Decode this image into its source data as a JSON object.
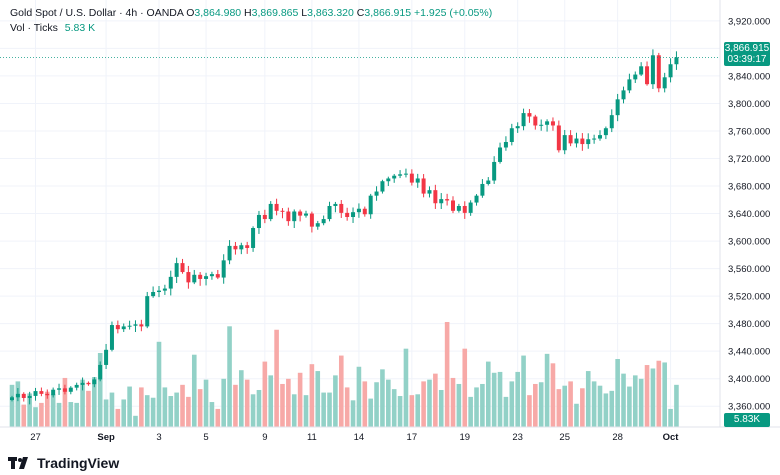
{
  "header": {
    "symbol": "Gold Spot / U.S. Dollar · 4h · OANDA",
    "open_label": "O",
    "open": "3,864.980",
    "high_label": "H",
    "high": "3,869.865",
    "low_label": "L",
    "low": "3,863.320",
    "close_label": "C",
    "close": "3,866.915",
    "change": "+1.925 (+0.05%)",
    "vol_label": "Vol · Ticks",
    "vol_value": "5.83 K"
  },
  "last_price": {
    "price": "3,866.915",
    "countdown": "03:39:17"
  },
  "volume_tag": "5.83K",
  "branding": {
    "name": "TradingView"
  },
  "colors": {
    "up": "#089981",
    "down": "#f23645",
    "vol_up": "#92d1c7",
    "vol_down": "#f7a9a7",
    "grid": "#f0f3fa"
  },
  "chart_data": {
    "type": "candlestick",
    "ylim": [
      3340,
      3930
    ],
    "y_ticks": [
      3360,
      3400,
      3440,
      3480,
      3520,
      3560,
      3600,
      3640,
      3680,
      3720,
      3760,
      3800,
      3840,
      3880,
      3920
    ],
    "y_tick_labels": [
      "3,360.000",
      "3,400.000",
      "3,440.000",
      "3,480.000",
      "3,520.000",
      "3,560.000",
      "3,600.000",
      "3,640.000",
      "3,680.000",
      "3,720.000",
      "3,760.000",
      "3,800.000",
      "3,840.000",
      "3,880.000",
      "3,920.000"
    ],
    "x_tick_labels": [
      {
        "label": "27",
        "index": 4
      },
      {
        "label": "Sep",
        "index": 16
      },
      {
        "label": "3",
        "index": 25
      },
      {
        "label": "5",
        "index": 33
      },
      {
        "label": "9",
        "index": 43
      },
      {
        "label": "11",
        "index": 51
      },
      {
        "label": "14",
        "index": 59
      },
      {
        "label": "17",
        "index": 68
      },
      {
        "label": "19",
        "index": 77
      },
      {
        "label": "23",
        "index": 86
      },
      {
        "label": "25",
        "index": 94
      },
      {
        "label": "28",
        "index": 103
      },
      {
        "label": "Oct",
        "index": 112
      }
    ],
    "closes": [
      3373,
      3378,
      3372,
      3375,
      3382,
      3378,
      3376,
      3384,
      3386,
      3381,
      3387,
      3391,
      3394,
      3392,
      3399,
      3420,
      3442,
      3478,
      3472,
      3476,
      3477,
      3479,
      3476,
      3520,
      3526,
      3528,
      3531,
      3548,
      3568,
      3555,
      3540,
      3551,
      3545,
      3549,
      3552,
      3547,
      3572,
      3593,
      3588,
      3594,
      3590,
      3619,
      3638,
      3632,
      3654,
      3644,
      3643,
      3629,
      3643,
      3637,
      3640,
      3621,
      3626,
      3632,
      3651,
      3654,
      3641,
      3635,
      3642,
      3647,
      3639,
      3666,
      3672,
      3687,
      3691,
      3695,
      3697,
      3698,
      3685,
      3691,
      3669,
      3674,
      3655,
      3661,
      3659,
      3644,
      3651,
      3641,
      3656,
      3666,
      3683,
      3688,
      3715,
      3736,
      3744,
      3764,
      3767,
      3786,
      3781,
      3768,
      3769,
      3774,
      3768,
      3732,
      3754,
      3742,
      3749,
      3741,
      3748,
      3749,
      3754,
      3764,
      3783,
      3806,
      3819,
      3835,
      3842,
      3854,
      3828,
      3870,
      3822,
      3838,
      3857,
      3867
    ],
    "volumes": [
      0.49,
      0.53,
      0.26,
      0.39,
      0.23,
      0.28,
      0.41,
      0.38,
      0.28,
      0.57,
      0.29,
      0.28,
      0.55,
      0.42,
      0.58,
      0.86,
      0.32,
      0.4,
      0.21,
      0.32,
      0.47,
      0.13,
      0.46,
      0.37,
      0.34,
      0.99,
      0.46,
      0.36,
      0.4,
      0.49,
      0.35,
      0.84,
      0.44,
      0.55,
      0.29,
      0.21,
      0.56,
      1.17,
      0.49,
      0.66,
      0.55,
      0.38,
      0.43,
      0.76,
      0.6,
      1.13,
      0.5,
      0.56,
      0.38,
      0.63,
      0.37,
      0.73,
      0.65,
      0.4,
      0.4,
      0.6,
      0.83,
      0.46,
      0.31,
      0.7,
      0.53,
      0.33,
      0.52,
      0.67,
      0.55,
      0.44,
      0.36,
      0.91,
      0.37,
      0.38,
      0.53,
      0.55,
      0.62,
      0.43,
      1.22,
      0.57,
      0.5,
      0.91,
      0.35,
      0.46,
      0.5,
      0.76,
      0.63,
      0.64,
      0.35,
      0.53,
      0.64,
      0.83,
      0.37,
      0.5,
      0.52,
      0.85,
      0.74,
      0.44,
      0.48,
      0.53,
      0.27,
      0.45,
      0.65,
      0.53,
      0.48,
      0.39,
      0.42,
      0.79,
      0.62,
      0.47,
      0.6,
      0.56,
      0.72,
      0.68,
      0.77,
      0.75,
      0.21,
      0.49
    ]
  }
}
